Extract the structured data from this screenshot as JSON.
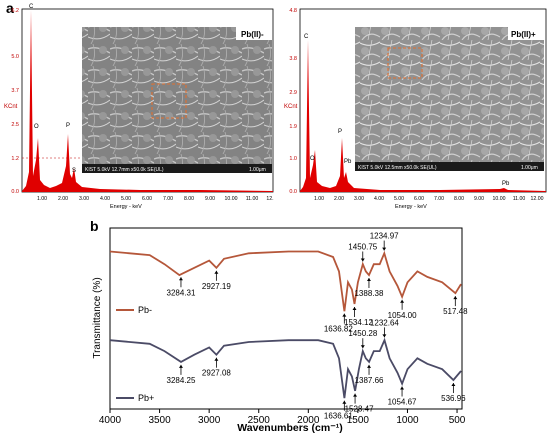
{
  "panel_a": {
    "letter": "a",
    "left": {
      "title": "Pb(II)-",
      "ylabel": "KCnt",
      "xlabel": "Energy - keV",
      "yticks": [
        "6.2",
        "5.0",
        "3.7",
        "2.5",
        "1.2",
        "0.0"
      ],
      "xticks": [
        "1.00",
        "2.00",
        "3.00",
        "4.00",
        "5.00",
        "6.00",
        "7.00",
        "8.00",
        "9.00",
        "10.00",
        "11.00",
        "12."
      ],
      "peaks": [
        "C",
        "O",
        "P",
        "S"
      ],
      "sem_caption": "KIST 5.0kV 12.7mm x50.0k SE(UL)",
      "scale": "1.00μm"
    },
    "right": {
      "title": "Pb(II)+",
      "ylabel": "KCnt",
      "xlabel": "Energy - keV",
      "yticks": [
        "4.8",
        "3.8",
        "2.9",
        "1.9",
        "1.0",
        "0.0"
      ],
      "xticks": [
        "1.00",
        "2.00",
        "3.00",
        "4.00",
        "5.00",
        "6.00",
        "7.00",
        "8.00",
        "9.00",
        "10.00",
        "11.00",
        "12.00"
      ],
      "peaks": [
        "C",
        "O",
        "P",
        "Pb",
        "Pb"
      ],
      "sem_caption": "KIST 5.0kV 12.5mm x50.0k SE(UL)",
      "scale": "1.00μm"
    }
  },
  "panel_b": {
    "letter": "b",
    "chart_data": {
      "type": "line",
      "xlabel": "Wavenumbers (cm⁻¹)",
      "ylabel": "Transmittance (%)",
      "xlim": [
        4000,
        450
      ],
      "xticks": [
        "4000",
        "3500",
        "3000",
        "2500",
        "2000",
        "1500",
        "1000",
        "500"
      ],
      "series": [
        {
          "name": "Pb-",
          "color": "#b5573a",
          "peaks": [
            "3284.31",
            "2927.19",
            "1636.82",
            "1534.12",
            "1450.75",
            "1388.38",
            "1234.97",
            "1054.00",
            "517.48"
          ],
          "points": [
            [
              4000,
              0.13
            ],
            [
              3800,
              0.14
            ],
            [
              3600,
              0.15
            ],
            [
              3450,
              0.2
            ],
            [
              3300,
              0.26
            ],
            [
              3150,
              0.22
            ],
            [
              3000,
              0.18
            ],
            [
              2927,
              0.22
            ],
            [
              2850,
              0.17
            ],
            [
              2600,
              0.14
            ],
            [
              2200,
              0.13
            ],
            [
              1900,
              0.13
            ],
            [
              1750,
              0.16
            ],
            [
              1690,
              0.24
            ],
            [
              1636,
              0.46
            ],
            [
              1600,
              0.3
            ],
            [
              1560,
              0.34
            ],
            [
              1534,
              0.42
            ],
            [
              1500,
              0.3
            ],
            [
              1450,
              0.2
            ],
            [
              1420,
              0.24
            ],
            [
              1388,
              0.26
            ],
            [
              1340,
              0.2
            ],
            [
              1280,
              0.2
            ],
            [
              1234,
              0.14
            ],
            [
              1180,
              0.24
            ],
            [
              1100,
              0.32
            ],
            [
              1054,
              0.38
            ],
            [
              1000,
              0.3
            ],
            [
              900,
              0.24
            ],
            [
              800,
              0.27
            ],
            [
              650,
              0.3
            ],
            [
              517,
              0.36
            ],
            [
              460,
              0.31
            ]
          ]
        },
        {
          "name": "Pb+",
          "color": "#4b4b66",
          "peaks": [
            "3284.25",
            "2927.08",
            "1636.61",
            "1528.47",
            "1450.28",
            "1387.66",
            "1232.64",
            "1054.67",
            "536.96"
          ],
          "points": [
            [
              4000,
              0.62
            ],
            [
              3800,
              0.63
            ],
            [
              3600,
              0.64
            ],
            [
              3450,
              0.68
            ],
            [
              3284,
              0.74
            ],
            [
              3150,
              0.7
            ],
            [
              3000,
              0.66
            ],
            [
              2927,
              0.7
            ],
            [
              2850,
              0.65
            ],
            [
              2600,
              0.63
            ],
            [
              2200,
              0.62
            ],
            [
              1900,
              0.62
            ],
            [
              1750,
              0.64
            ],
            [
              1690,
              0.72
            ],
            [
              1636,
              0.94
            ],
            [
              1600,
              0.78
            ],
            [
              1560,
              0.82
            ],
            [
              1528,
              0.9
            ],
            [
              1490,
              0.78
            ],
            [
              1450,
              0.68
            ],
            [
              1420,
              0.72
            ],
            [
              1387,
              0.74
            ],
            [
              1340,
              0.68
            ],
            [
              1280,
              0.68
            ],
            [
              1232,
              0.62
            ],
            [
              1180,
              0.72
            ],
            [
              1100,
              0.8
            ],
            [
              1054,
              0.86
            ],
            [
              1000,
              0.78
            ],
            [
              900,
              0.72
            ],
            [
              800,
              0.75
            ],
            [
              650,
              0.78
            ],
            [
              537,
              0.84
            ],
            [
              460,
              0.79
            ]
          ]
        }
      ]
    }
  }
}
